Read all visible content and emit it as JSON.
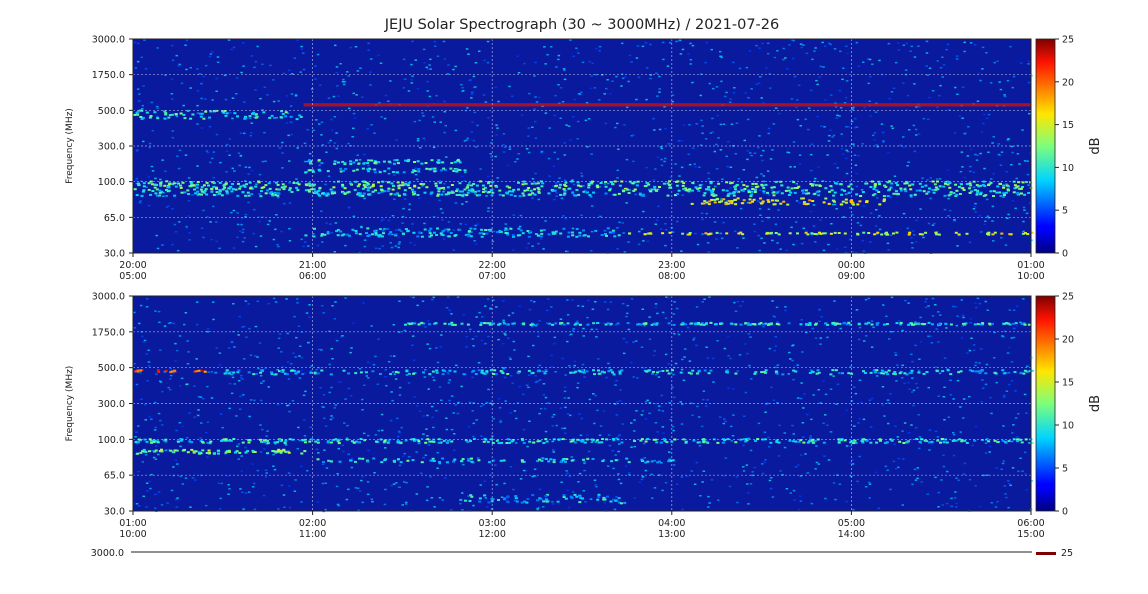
{
  "chart_data": {
    "type": "heatmap",
    "title": "JEJU Solar Spectrograph (30 ~ 3000MHz) / 2021-07-26",
    "colormap": "jet",
    "panels": [
      {
        "ylabel": "Frequency (MHz)",
        "yticks": [
          "30.0",
          "65.0",
          "100.0",
          "300.0",
          "500.0",
          "1750.0",
          "3000.0"
        ],
        "xticks": [
          {
            "top": "20:00",
            "bottom": "05:00"
          },
          {
            "top": "21:00",
            "bottom": "06:00"
          },
          {
            "top": "22:00",
            "bottom": "07:00"
          },
          {
            "top": "23:00",
            "bottom": "08:00"
          },
          {
            "top": "00:00",
            "bottom": "09:00"
          },
          {
            "top": "01:00",
            "bottom": "10:00"
          }
        ],
        "colorbar": {
          "label": "dB",
          "ticks": [
            "0",
            "5",
            "10",
            "15",
            "20",
            "25"
          ],
          "range": [
            0,
            25
          ]
        }
      },
      {
        "ylabel": "Frequency (MHz)",
        "yticks": [
          "30.0",
          "65.0",
          "100.0",
          "300.0",
          "500.0",
          "1750.0",
          "3000.0"
        ],
        "xticks": [
          {
            "top": "01:00",
            "bottom": "10:00"
          },
          {
            "top": "02:00",
            "bottom": "11:00"
          },
          {
            "top": "03:00",
            "bottom": "12:00"
          },
          {
            "top": "04:00",
            "bottom": "13:00"
          },
          {
            "top": "05:00",
            "bottom": "14:00"
          },
          {
            "top": "06:00",
            "bottom": "15:00"
          }
        ],
        "colorbar": {
          "label": "dB",
          "ticks": [
            "0",
            "5",
            "10",
            "15",
            "20",
            "25"
          ],
          "range": [
            0,
            25
          ]
        }
      }
    ],
    "partial_third_panel": {
      "ytick": "3000.0",
      "colorbar_tick": "25"
    },
    "grid": true
  }
}
